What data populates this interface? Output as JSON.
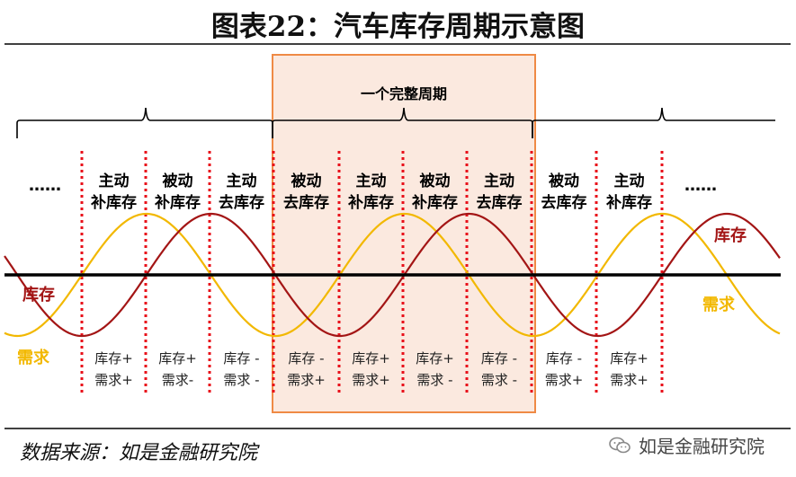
{
  "title": "图表22：汽车库存周期示意图",
  "full_cycle_label": "一个完整周期",
  "ellipsis_left": "……",
  "ellipsis_right": "……",
  "phases": [
    {
      "line1": "主动",
      "line2": "补库存",
      "inv": "库存+",
      "dem": "需求+"
    },
    {
      "line1": "被动",
      "line2": "补库存",
      "inv": "库存+",
      "dem": "需求-"
    },
    {
      "line1": "主动",
      "line2": "去库存",
      "inv": "库存 -",
      "dem": "需求 -"
    },
    {
      "line1": "被动",
      "line2": "去库存",
      "inv": "库存 -",
      "dem": "需求+"
    },
    {
      "line1": "主动",
      "line2": "补库存",
      "inv": "库存+",
      "dem": "需求+"
    },
    {
      "line1": "被动",
      "line2": "补库存",
      "inv": "库存+",
      "dem": "需求 -"
    },
    {
      "line1": "主动",
      "line2": "去库存",
      "inv": "库存 -",
      "dem": "需求 -"
    },
    {
      "line1": "被动",
      "line2": "去库存",
      "inv": "库存 -",
      "dem": "需求+"
    },
    {
      "line1": "主动",
      "line2": "补库存",
      "inv": "库存+",
      "dem": "需求+"
    }
  ],
  "series": {
    "inventory": {
      "label": "库存",
      "color": "#a31515"
    },
    "demand": {
      "label": "需求",
      "color": "#f2b800"
    }
  },
  "colors": {
    "highlight_fill": "#fbe9df",
    "highlight_border": "#ef8a45",
    "divider": "#e8101a",
    "axis": "#000000"
  },
  "source": "数据来源：如是金融研究院",
  "watermark": "如是金融研究院"
}
